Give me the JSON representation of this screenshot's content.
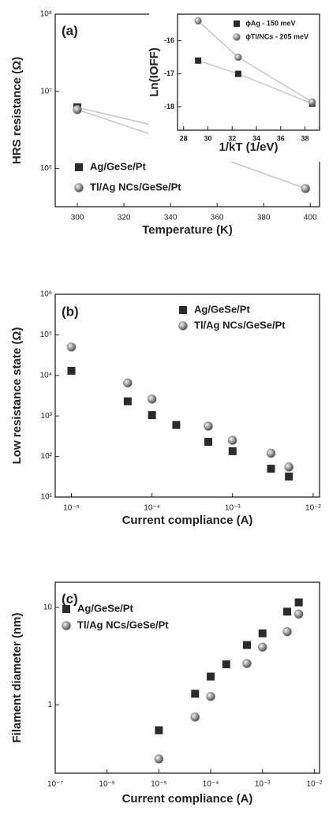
{
  "chart_data": [
    {
      "type": "scatter",
      "title": "(a)",
      "x_label": "Temperature (K)",
      "y_label": "HRS resistance (Ω)",
      "xlim": [
        290.5,
        404
      ],
      "xticks": [
        300,
        320,
        340,
        360,
        380,
        400
      ],
      "ylim": [
        320000,
        100000000
      ],
      "y_log": true,
      "yticks": [
        {
          "value": 1000000,
          "label": "10⁶"
        },
        {
          "value": 10000000,
          "label": "10⁷"
        },
        {
          "value": 100000000,
          "label": "10⁸"
        }
      ],
      "lines": true,
      "series": [
        {
          "name": "Ag/GeSe/Pt",
          "marker": "square",
          "color": "#2b2b2b",
          "x": [
            300,
            358,
            398
          ],
          "values": [
            6200000,
            2400000,
            1500000
          ]
        },
        {
          "name": "Tl/Ag NCs/GeSe/Pt",
          "marker": "circle",
          "color": "#8a8a8a",
          "x": [
            300,
            358,
            398
          ],
          "values": [
            5800000,
            1500000,
            550000
          ]
        }
      ]
    },
    {
      "type": "scatter",
      "x_label": "1/kT (1/eV)",
      "y_label": "Ln(IOFF)",
      "xlim": [
        27.5,
        39.2
      ],
      "xticks": [
        28,
        30,
        32,
        34,
        36,
        38
      ],
      "ylim": [
        -18.7,
        -15.2
      ],
      "yticks": [
        -18,
        -17,
        -16
      ],
      "lines": true,
      "series": [
        {
          "name": "ϕAg - 150 meV",
          "marker": "square",
          "color": "#2b2b2b",
          "x": [
            29.2,
            32.5,
            38.6
          ],
          "values": [
            -16.6,
            -17.0,
            -17.9
          ]
        },
        {
          "name": "ϕTl/NCs - 205 meV",
          "marker": "circle",
          "color": "#8a8a8a",
          "x": [
            29.2,
            32.5,
            38.6
          ],
          "values": [
            -15.4,
            -16.5,
            -17.85
          ]
        }
      ]
    },
    {
      "type": "scatter",
      "title": "(b)",
      "x_label": "Current compliance (A)",
      "y_label": "Low resistance state (Ω)",
      "xlim": [
        6.3e-06,
        0.012
      ],
      "x_log": true,
      "xticks": [
        {
          "value": 1e-05,
          "label": "10⁻⁵"
        },
        {
          "value": 0.0001,
          "label": "10⁻⁴"
        },
        {
          "value": 0.001,
          "label": "10⁻³"
        },
        {
          "value": 0.01,
          "label": "10⁻²"
        }
      ],
      "ylim": [
        10,
        1000000
      ],
      "y_log": true,
      "yticks": [
        {
          "value": 10,
          "label": "10¹"
        },
        {
          "value": 100,
          "label": "10²"
        },
        {
          "value": 1000,
          "label": "10³"
        },
        {
          "value": 10000,
          "label": "10⁴"
        },
        {
          "value": 100000,
          "label": "10⁵"
        },
        {
          "value": 1000000,
          "label": "10⁶"
        }
      ],
      "series": [
        {
          "name": "Ag/GeSe/Pt",
          "marker": "square",
          "color": "#2b2b2b",
          "x": [
            1e-05,
            5e-05,
            0.0001,
            0.0002,
            0.0005,
            0.001,
            0.003,
            0.005
          ],
          "values": [
            13000,
            2300,
            1050,
            600,
            230,
            135,
            50,
            32
          ]
        },
        {
          "name": "Tl/Ag NCs/GeSe/Pt",
          "marker": "circle",
          "color": "#8a8a8a",
          "x": [
            1e-05,
            5e-05,
            0.0001,
            0.0005,
            0.001,
            0.003,
            0.005
          ],
          "values": [
            50000,
            6500,
            2600,
            560,
            250,
            120,
            55
          ]
        }
      ]
    },
    {
      "type": "scatter",
      "title": "(c)",
      "x_label": "Current compliance (A)",
      "y_label": "Filament diameter (nm)",
      "xlim": [
        1e-07,
        0.0126
      ],
      "x_log": true,
      "xticks": [
        {
          "value": 1e-07,
          "label": "10⁻⁷"
        },
        {
          "value": 1e-06,
          "label": "10⁻⁶"
        },
        {
          "value": 1e-05,
          "label": "10⁻⁵"
        },
        {
          "value": 0.0001,
          "label": "10⁻⁴"
        },
        {
          "value": 0.001,
          "label": "10⁻³"
        },
        {
          "value": 0.01,
          "label": "10⁻²"
        }
      ],
      "ylim": [
        0.2,
        18
      ],
      "y_log": true,
      "yticks": [
        1,
        10
      ],
      "series": [
        {
          "name": "Ag/GeSe/Pt",
          "marker": "square",
          "color": "#2b2b2b",
          "x": [
            1e-05,
            5e-05,
            0.0001,
            0.0002,
            0.0005,
            0.001,
            0.003,
            0.005
          ],
          "values": [
            0.55,
            1.3,
            1.95,
            2.6,
            4.1,
            5.4,
            9,
            11.2
          ]
        },
        {
          "name": "Tl/Ag NCs/GeSe/Pt",
          "marker": "circle",
          "color": "#8a8a8a",
          "x": [
            1e-05,
            5e-05,
            0.0001,
            0.0005,
            0.001,
            0.003,
            0.005
          ],
          "values": [
            0.28,
            0.75,
            1.22,
            2.65,
            3.9,
            5.6,
            8.5
          ]
        }
      ]
    }
  ]
}
